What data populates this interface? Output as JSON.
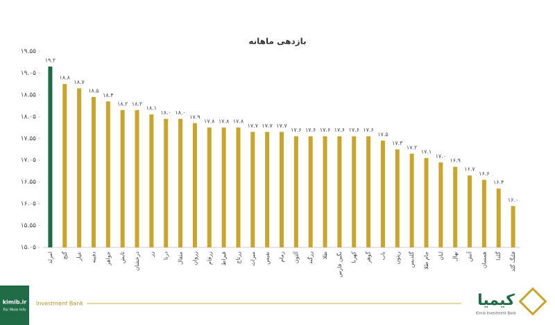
{
  "chart_data": {
    "type": "bar",
    "title": "بازدهی ماهانه",
    "categories": [
      "امرلد",
      "گنج",
      "عیار",
      "دفینه",
      "جواهر",
      "تابش",
      "درخشان",
      "زر",
      "درنا",
      "مثقال",
      "زروان",
      "زرفام",
      "قیراط",
      "زرتاج",
      "میراث",
      "نفیس",
      "زمام",
      "آلتون",
      "زرگند",
      "طلا",
      "نگین فارس",
      "کهربا",
      "گوهر",
      "ناب",
      "ریتون",
      "گلدیس",
      "جام طلا",
      "ایان",
      "نهال",
      "آتش",
      "همسان",
      "گلدا",
      "فلنگ گلد"
    ],
    "values": [
      19.2,
      18.8,
      18.7,
      18.5,
      18.4,
      18.2,
      18.2,
      18.1,
      18.0,
      18.0,
      17.9,
      17.8,
      17.8,
      17.8,
      17.7,
      17.7,
      17.7,
      17.6,
      17.6,
      17.6,
      17.6,
      17.6,
      17.6,
      17.5,
      17.3,
      17.2,
      17.1,
      17.0,
      16.9,
      16.7,
      16.6,
      16.4,
      16.0
    ],
    "value_labels": [
      "۱۹.۲",
      "۱۸.۸",
      "۱۸.۷",
      "۱۸.۵",
      "۱۸.۴",
      "۱۸.۲",
      "۱۸.۲",
      "۱۸.۱",
      "۱۸.۰",
      "۱۸.۰",
      "۱۷.۹",
      "۱۷.۸",
      "۱۷.۸",
      "۱۷.۸",
      "۱۷.۷",
      "۱۷.۷",
      "۱۷.۷",
      "۱۷.۶",
      "۱۷.۶",
      "۱۷.۶",
      "۱۷.۶",
      "۱۷.۶",
      "۱۷.۶",
      "۱۷.۵",
      "۱۷.۳",
      "۱۷.۲",
      "۱۷.۱",
      "۱۷.۰",
      "۱۶.۹",
      "۱۶.۷",
      "۱۶.۶",
      "۱۶.۴",
      "۱۶.۰"
    ],
    "color": "#c9a52c",
    "first_color": "#1f6b46",
    "ylim": [
      15.05,
      19.55
    ],
    "yticks": [
      {
        "value": 15.05,
        "label": "۱۵.۰۵"
      },
      {
        "value": 15.55,
        "label": "۱۵.۵۵"
      },
      {
        "value": 16.05,
        "label": "۱۶.۰۵"
      },
      {
        "value": 16.55,
        "label": "۱۶.۵۵"
      },
      {
        "value": 17.05,
        "label": "۱۷.۰۵"
      },
      {
        "value": 17.55,
        "label": "۱۷.۵۵"
      },
      {
        "value": 18.05,
        "label": "۱۸.۰۵"
      },
      {
        "value": 18.55,
        "label": "۱۸.۵۵"
      },
      {
        "value": 19.05,
        "label": "۱۹.۰۵"
      },
      {
        "value": 19.55,
        "label": "۱۹.۵۵"
      }
    ],
    "grid": false
  },
  "footer": {
    "site": "kimib.ir",
    "site_note": "For More Info",
    "tagline": "Investment Bank",
    "brand": "کیمیا",
    "brand_en": "Kimia Investment Bank"
  }
}
